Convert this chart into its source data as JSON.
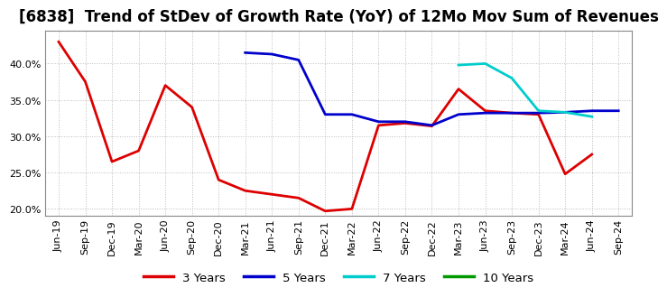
{
  "title": "[6838]  Trend of StDev of Growth Rate (YoY) of 12Mo Mov Sum of Revenues",
  "ylim": [
    0.19,
    0.445
  ],
  "yticks": [
    0.2,
    0.25,
    0.3,
    0.35,
    0.4
  ],
  "background_color": "#ffffff",
  "plot_bg_color": "#ffffff",
  "grid_color": "#aaaaaa",
  "series": {
    "3 Years": {
      "color": "#dd0000",
      "x": [
        0,
        1,
        2,
        3,
        4,
        5,
        6,
        7,
        8,
        9,
        10,
        11,
        12,
        13,
        14,
        15,
        16,
        17,
        18,
        19,
        20
      ],
      "values": [
        0.43,
        0.375,
        0.265,
        0.28,
        0.37,
        0.34,
        0.24,
        0.225,
        0.22,
        0.215,
        0.197,
        0.2,
        0.315,
        0.318,
        0.314,
        0.365,
        0.335,
        0.332,
        0.33,
        0.248,
        0.275
      ]
    },
    "5 Years": {
      "color": "#0000cc",
      "x": [
        7,
        8,
        9,
        10,
        11,
        12,
        13,
        14,
        15,
        16,
        17,
        18,
        19,
        20,
        21
      ],
      "values": [
        0.415,
        0.413,
        0.405,
        0.33,
        0.33,
        0.32,
        0.32,
        0.315,
        0.33,
        0.332,
        0.332,
        0.332,
        0.333,
        0.335,
        0.335
      ]
    },
    "7 Years": {
      "color": "#00cccc",
      "x": [
        15,
        16,
        17,
        18,
        19,
        20
      ],
      "values": [
        0.398,
        0.4,
        0.38,
        0.335,
        0.333,
        0.327
      ]
    },
    "10 Years": {
      "color": "#009900",
      "x": [],
      "values": []
    }
  },
  "xtick_labels": [
    "Jun-19",
    "Sep-19",
    "Dec-19",
    "Mar-20",
    "Jun-20",
    "Sep-20",
    "Dec-20",
    "Mar-21",
    "Jun-21",
    "Sep-21",
    "Dec-21",
    "Mar-22",
    "Jun-22",
    "Sep-22",
    "Dec-22",
    "Mar-23",
    "Jun-23",
    "Sep-23",
    "Dec-23",
    "Mar-24",
    "Jun-24",
    "Sep-24"
  ],
  "legend_labels": [
    "3 Years",
    "5 Years",
    "7 Years",
    "10 Years"
  ],
  "legend_colors": [
    "#dd0000",
    "#0000cc",
    "#00cccc",
    "#009900"
  ],
  "title_fontsize": 12,
  "tick_fontsize": 8,
  "legend_fontsize": 9.5
}
